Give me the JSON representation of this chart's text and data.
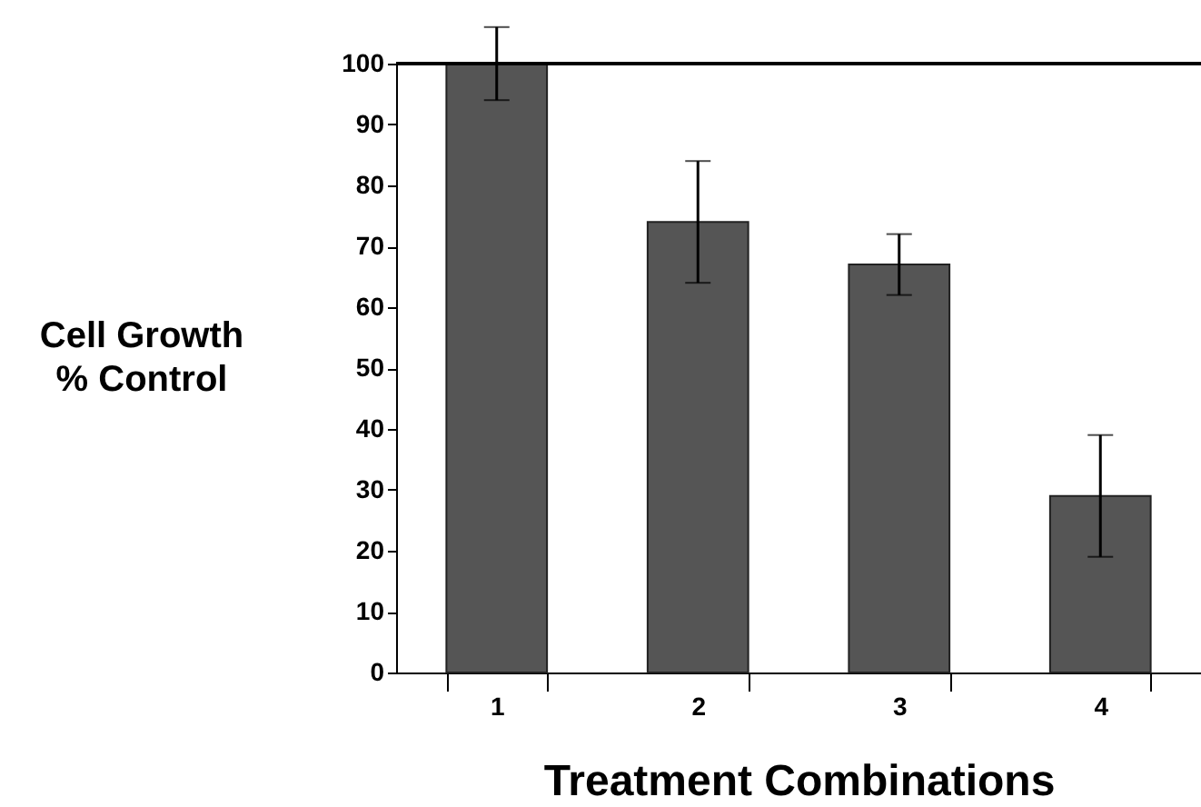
{
  "chart_data": {
    "type": "bar",
    "xlabel": "Treatment Combinations",
    "ylabel": "Cell Growth\n% Control",
    "categories": [
      "1",
      "2",
      "3",
      "4"
    ],
    "values": [
      100,
      74,
      67,
      29
    ],
    "errors": [
      6,
      10,
      5,
      10
    ],
    "color": "#555555",
    "ylim": [
      0,
      100
    ],
    "yticks": [
      0,
      10,
      20,
      30,
      40,
      50,
      60,
      70,
      80,
      90,
      100
    ],
    "grid": false
  }
}
